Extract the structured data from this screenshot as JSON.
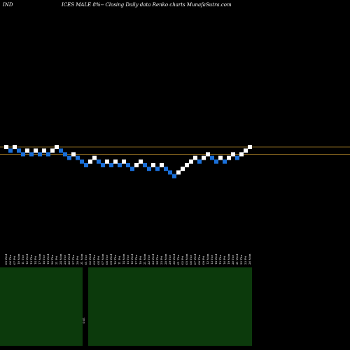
{
  "header": {
    "ticker": "IND",
    "title": "ICES MALE 8%-- Closing Daily data Renko charts MunafaSutra.com"
  },
  "colors": {
    "background": "#000000",
    "up_brick": "#ffffff",
    "down_brick": "#1a6fd8",
    "reference_line": "#b08428",
    "volume_panel": "#0c3a0c",
    "text": "#ffffff"
  },
  "chart_data": {
    "type": "renko",
    "series": [
      {
        "dir": "up",
        "level": 0
      },
      {
        "dir": "down",
        "level": -1
      },
      {
        "dir": "up",
        "level": 0
      },
      {
        "dir": "down",
        "level": -1
      },
      {
        "dir": "down",
        "level": -2
      },
      {
        "dir": "up",
        "level": -1
      },
      {
        "dir": "down",
        "level": -2
      },
      {
        "dir": "up",
        "level": -1
      },
      {
        "dir": "down",
        "level": -2
      },
      {
        "dir": "up",
        "level": -1
      },
      {
        "dir": "down",
        "level": -2
      },
      {
        "dir": "up",
        "level": -1
      },
      {
        "dir": "up",
        "level": 0
      },
      {
        "dir": "down",
        "level": -1
      },
      {
        "dir": "down",
        "level": -2
      },
      {
        "dir": "down",
        "level": -3
      },
      {
        "dir": "up",
        "level": -2
      },
      {
        "dir": "down",
        "level": -3
      },
      {
        "dir": "down",
        "level": -4
      },
      {
        "dir": "down",
        "level": -5
      },
      {
        "dir": "up",
        "level": -4
      },
      {
        "dir": "up",
        "level": -3
      },
      {
        "dir": "down",
        "level": -4
      },
      {
        "dir": "down",
        "level": -5
      },
      {
        "dir": "up",
        "level": -4
      },
      {
        "dir": "down",
        "level": -5
      },
      {
        "dir": "up",
        "level": -4
      },
      {
        "dir": "down",
        "level": -5
      },
      {
        "dir": "up",
        "level": -4
      },
      {
        "dir": "down",
        "level": -5
      },
      {
        "dir": "down",
        "level": -6
      },
      {
        "dir": "up",
        "level": -5
      },
      {
        "dir": "up",
        "level": -4
      },
      {
        "dir": "down",
        "level": -5
      },
      {
        "dir": "down",
        "level": -6
      },
      {
        "dir": "up",
        "level": -5
      },
      {
        "dir": "down",
        "level": -6
      },
      {
        "dir": "up",
        "level": -5
      },
      {
        "dir": "down",
        "level": -6
      },
      {
        "dir": "down",
        "level": -7
      },
      {
        "dir": "down",
        "level": -8
      },
      {
        "dir": "up",
        "level": -7
      },
      {
        "dir": "up",
        "level": -6
      },
      {
        "dir": "up",
        "level": -5
      },
      {
        "dir": "up",
        "level": -4
      },
      {
        "dir": "up",
        "level": -3
      },
      {
        "dir": "down",
        "level": -4
      },
      {
        "dir": "up",
        "level": -3
      },
      {
        "dir": "up",
        "level": -2
      },
      {
        "dir": "down",
        "level": -3
      },
      {
        "dir": "down",
        "level": -4
      },
      {
        "dir": "up",
        "level": -3
      },
      {
        "dir": "down",
        "level": -4
      },
      {
        "dir": "up",
        "level": -3
      },
      {
        "dir": "up",
        "level": -2
      },
      {
        "dir": "down",
        "level": -3
      },
      {
        "dir": "up",
        "level": -2
      },
      {
        "dir": "up",
        "level": -1
      },
      {
        "dir": "up",
        "level": 0
      }
    ],
    "reference_levels": [
      0,
      -2
    ],
    "x_tick_labels": [
      "05 Wed",
      "06 Thu",
      "07 Fri",
      "10 Mon",
      "11 Tue",
      "12 Wed",
      "13 Thu",
      "14 Fri",
      "17 Mon",
      "18 Tue",
      "19 Wed",
      "20 Thu",
      "21 Fri",
      "24 Mon",
      "25 Tue",
      "26 Wed",
      "27 Thu",
      "28 Fri",
      "31 Mon",
      "01 Tue",
      "02 Wed",
      "03 Thu",
      "04 Fri",
      "07 Mon",
      "08 Tue",
      "09 Wed",
      "10 Thu",
      "11 Fri",
      "14 Mon",
      "15 Tue",
      "16 Wed",
      "17 Thu",
      "18 Fri",
      "21 Mon",
      "22 Tue",
      "23 Wed",
      "24 Thu",
      "25 Fri",
      "28 Mon",
      "29 Tue",
      "30 Wed",
      "01 Thu",
      "02 Fri",
      "05 Mon",
      "06 Tue",
      "07 Wed",
      "08 Thu",
      "09 Fri",
      "12 Mon",
      "13 Tue",
      "14 Wed",
      "15 Thu",
      "16 Fri",
      "19 Mon",
      "20 Tue",
      "21 Wed",
      "22 Thu",
      "23 Fri",
      "26 Mon"
    ],
    "volume_label": "0.01",
    "grid": false,
    "legend": "none"
  }
}
